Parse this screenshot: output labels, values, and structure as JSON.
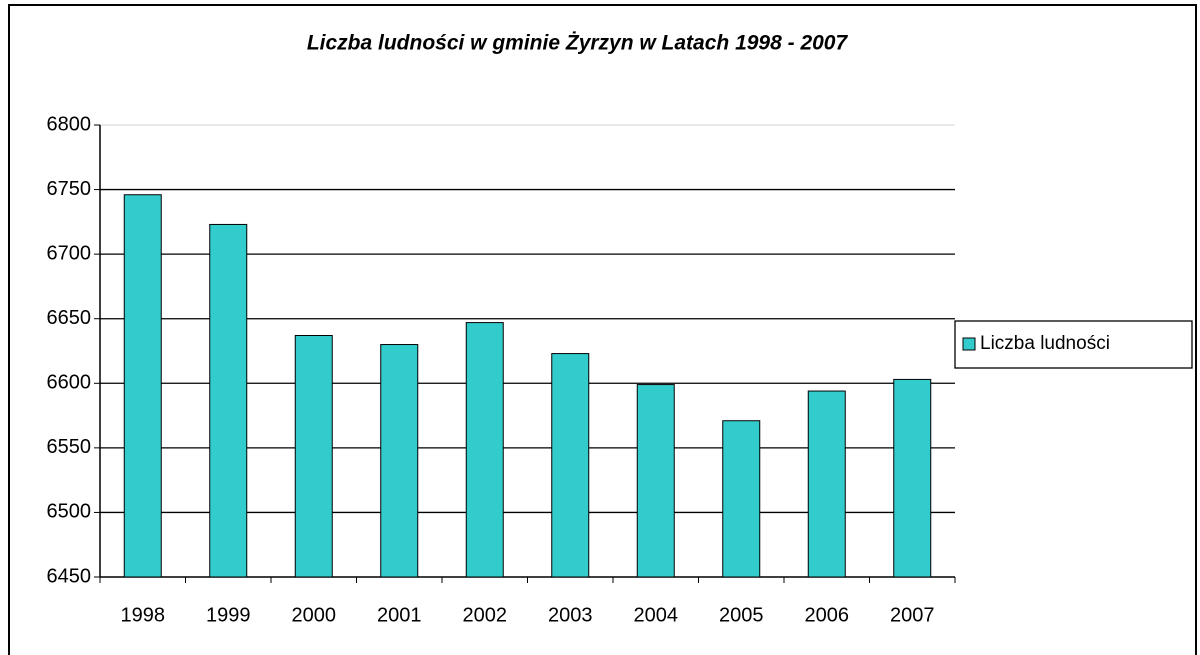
{
  "chart_data": {
    "type": "bar",
    "title": "Liczba ludności w gminie Żyrzyn w Latach 1998 - 2007",
    "categories": [
      "1998",
      "1999",
      "2000",
      "2001",
      "2002",
      "2003",
      "2004",
      "2005",
      "2006",
      "2007"
    ],
    "series": [
      {
        "name": "Liczba ludności",
        "color": "#33cccc",
        "values": [
          6746,
          6723,
          6637,
          6630,
          6647,
          6623,
          6599,
          6571,
          6594,
          6603
        ]
      }
    ],
    "ylim": [
      6450,
      6800
    ],
    "yticks": [
      6450,
      6500,
      6550,
      6600,
      6650,
      6700,
      6750,
      6800
    ],
    "grid": true,
    "legend": "right"
  }
}
